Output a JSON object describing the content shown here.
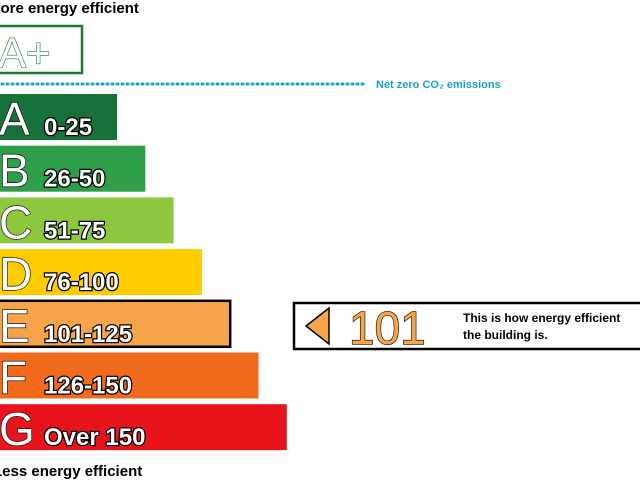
{
  "header": "More energy efficient",
  "top_rating": {
    "label": "A+",
    "color": "#1a7a32"
  },
  "net_zero": {
    "text": "Net zero CO₂ emissions",
    "color": "#1aa0c8"
  },
  "bands": [
    {
      "letter": "A",
      "range": "0-25",
      "color": "#16713a"
    },
    {
      "letter": "B",
      "range": "26-50",
      "color": "#2e9f48"
    },
    {
      "letter": "C",
      "range": "51-75",
      "color": "#8dc63f"
    },
    {
      "letter": "D",
      "range": "76-100",
      "color": "#ffcc00"
    },
    {
      "letter": "E",
      "range": "101-125",
      "color": "#f7a44a"
    },
    {
      "letter": "F",
      "range": "126-150",
      "color": "#f26b1d"
    },
    {
      "letter": "G",
      "range": "Over 150",
      "color": "#e8141b"
    }
  ],
  "current": {
    "value": 101,
    "color": "#f7a44a",
    "text_lines": [
      "This is how energy efficient",
      "the building is."
    ]
  },
  "footer": "Less energy efficient"
}
